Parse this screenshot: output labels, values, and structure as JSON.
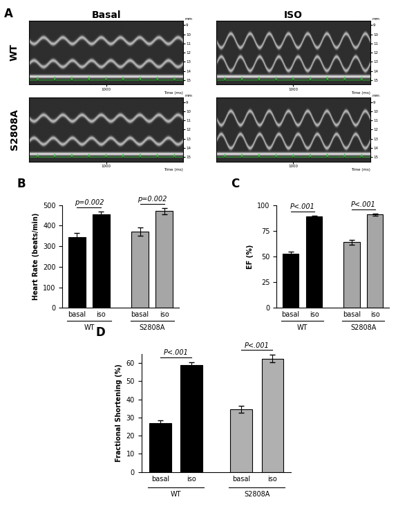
{
  "panel_a": {
    "label": "A",
    "columns": [
      "Basal",
      "ISO"
    ],
    "rows": [
      "WT",
      "S2808A"
    ],
    "depth_unit": "mm",
    "depth_ticks": [
      9,
      10,
      11,
      12,
      13,
      14,
      15
    ],
    "depth_range": [
      8.5,
      15.5
    ],
    "time_label": "Time (ms)",
    "time_ticks": [
      1000
    ],
    "time_range": [
      0,
      2000
    ]
  },
  "chart_data": [
    {
      "type": "bar",
      "panel": "B",
      "ylabel": "Heart Rate (beats/min)",
      "ylim": [
        0,
        500
      ],
      "yticks": [
        0,
        100,
        200,
        300,
        400,
        500
      ],
      "groups": [
        {
          "name": "WT",
          "color": "#000000",
          "categories": [
            "basal",
            "iso"
          ],
          "values": [
            345,
            455
          ],
          "errors": [
            18,
            15
          ],
          "p_label": "p=0.002"
        },
        {
          "name": "S2808A",
          "color": "#a6a6a6",
          "categories": [
            "basal",
            "iso"
          ],
          "values": [
            370,
            472
          ],
          "errors": [
            20,
            15
          ],
          "p_label": "p=0.002"
        }
      ]
    },
    {
      "type": "bar",
      "panel": "C",
      "ylabel": "EF (%)",
      "ylim": [
        0,
        100
      ],
      "yticks": [
        0,
        25,
        50,
        75,
        100
      ],
      "groups": [
        {
          "name": "WT",
          "color": "#000000",
          "categories": [
            "basal",
            "iso"
          ],
          "values": [
            53,
            89
          ],
          "errors": [
            2,
            1
          ],
          "p_label": "P<.001"
        },
        {
          "name": "S2808A",
          "color": "#a6a6a6",
          "categories": [
            "basal",
            "iso"
          ],
          "values": [
            64,
            91
          ],
          "errors": [
            2.5,
            1
          ],
          "p_label": "P<.001"
        }
      ]
    },
    {
      "type": "bar",
      "panel": "D",
      "ylabel": "Fractional Shortening (%)",
      "ylim": [
        0,
        65
      ],
      "yticks": [
        0,
        10,
        20,
        30,
        40,
        50,
        60
      ],
      "groups": [
        {
          "name": "WT",
          "color": "#000000",
          "categories": [
            "basal",
            "iso"
          ],
          "values": [
            27,
            59
          ],
          "errors": [
            1.5,
            1.5
          ],
          "p_label": "P<.001"
        },
        {
          "name": "S2808A",
          "color": "#b0b0b0",
          "categories": [
            "basal",
            "iso"
          ],
          "values": [
            34.5,
            62.5
          ],
          "errors": [
            2,
            2
          ],
          "p_label": "P<.001"
        }
      ]
    }
  ]
}
